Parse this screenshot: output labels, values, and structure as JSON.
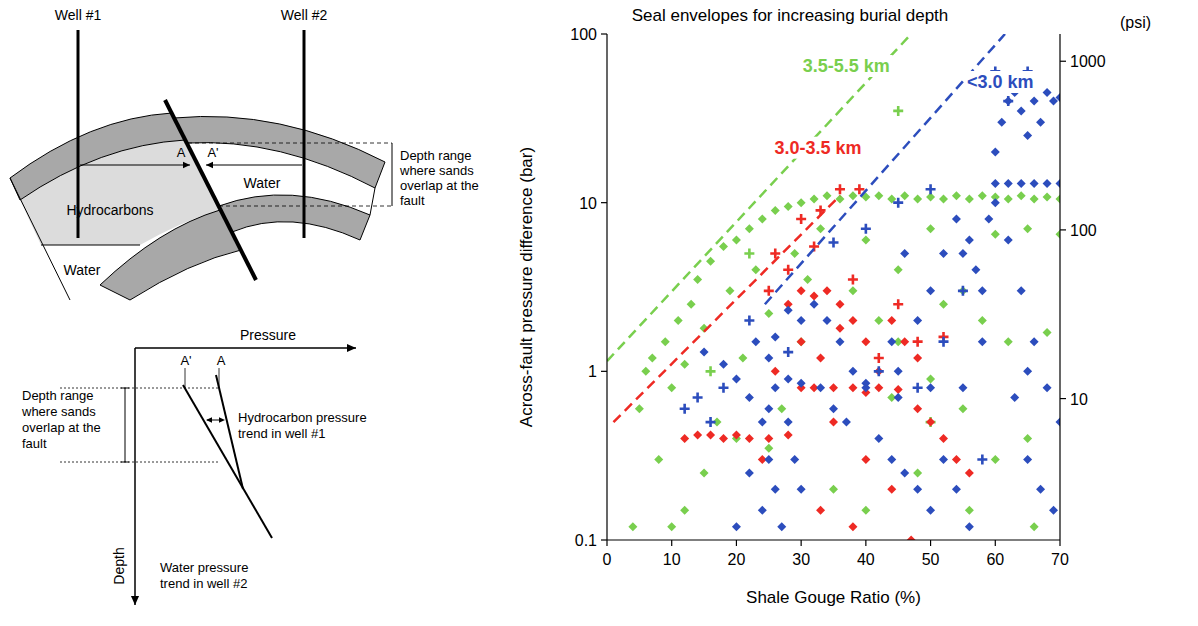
{
  "chart_data": {
    "type": "scatter",
    "title": "Seal envelopes for increasing burial depth",
    "x_label": "Shale Gouge Ratio (%)",
    "y_label": "Across-fault pressure difference (bar)",
    "y2_label": "(psi)",
    "log": "y",
    "xlim": [
      0,
      70
    ],
    "xticks": [
      0,
      10,
      20,
      30,
      40,
      50,
      60,
      70
    ],
    "ylim": [
      0.1,
      100
    ],
    "yticks": [
      0.1,
      1,
      10,
      100
    ],
    "y2lim": [
      1.45038,
      1450.38
    ],
    "y2ticks": [
      10,
      100,
      1000
    ],
    "series": [
      {
        "type": "scatter",
        "marker": "diamond",
        "color": "#79cf4e",
        "x": [
          4,
          5,
          6,
          7,
          8,
          9,
          10,
          11,
          12,
          12,
          13,
          14,
          15,
          16,
          17,
          18,
          19,
          20,
          21,
          22,
          23,
          24,
          25,
          26,
          27,
          28,
          29,
          30,
          31,
          32,
          33,
          34,
          36,
          38,
          40,
          42,
          44,
          46,
          48,
          50,
          52,
          54,
          56,
          58,
          60,
          62,
          64,
          66,
          68,
          70,
          40,
          45,
          50,
          55,
          60,
          65,
          70,
          45,
          50,
          55,
          60,
          65,
          35,
          40,
          48,
          62,
          68,
          58,
          52,
          42,
          38,
          44,
          30,
          25,
          20,
          15,
          10,
          66,
          56
        ],
        "values": [
          0.12,
          0.6,
          1,
          1.2,
          0.3,
          1.5,
          0.8,
          2,
          0.15,
          1.1,
          2.5,
          3.5,
          1.8,
          4.5,
          0.5,
          5.5,
          3,
          6,
          1.2,
          7,
          4,
          8,
          2.2,
          9,
          0.6,
          9.5,
          5,
          10,
          3.5,
          10.5,
          7,
          11,
          10.5,
          11,
          10.8,
          11,
          10.5,
          11,
          10.5,
          10.8,
          10.5,
          11,
          10.5,
          11,
          10.8,
          10.5,
          11,
          10.5,
          10.8,
          10.5,
          6,
          4,
          7,
          3,
          6.5,
          7,
          6.5,
          1.5,
          0.9,
          0.6,
          0.3,
          0.4,
          0.2,
          0.15,
          0.25,
          1.5,
          1.7,
          2,
          2.5,
          2,
          3,
          0.7,
          1.5,
          0.35,
          0.4,
          0.25,
          0.12,
          0.12,
          0.15
        ]
      },
      {
        "type": "scatter",
        "marker": "plus",
        "color": "#79cf4e",
        "x": [
          45,
          16,
          22,
          50
        ],
        "values": [
          35,
          1,
          5,
          0.5
        ]
      },
      {
        "type": "scatter",
        "marker": "diamond",
        "color": "#ee2a24",
        "x": [
          12,
          14,
          16,
          18,
          20,
          22,
          25,
          28,
          30,
          32,
          35,
          38,
          40,
          42,
          45,
          28,
          30,
          32,
          34,
          36,
          38,
          40,
          30,
          33,
          36,
          42,
          44,
          46,
          48,
          50,
          52,
          54,
          56,
          24,
          26,
          35,
          40,
          44,
          33,
          48,
          38,
          47
        ],
        "values": [
          0.4,
          0.42,
          0.42,
          0.4,
          0.42,
          0.4,
          0.4,
          0.42,
          0.8,
          0.8,
          0.8,
          0.8,
          0.75,
          0.8,
          0.78,
          2.5,
          3,
          2.8,
          3,
          2.5,
          2,
          1.5,
          1.5,
          1.2,
          1.8,
          1,
          2,
          1.5,
          0.6,
          0.5,
          0.4,
          0.3,
          0.25,
          0.3,
          1,
          0.5,
          0.3,
          0.2,
          0.15,
          1.2,
          0.12,
          0.1
        ]
      },
      {
        "type": "scatter",
        "marker": "plus",
        "color": "#ee2a24",
        "x": [
          30,
          33,
          36,
          39,
          26,
          32,
          28,
          25,
          38,
          45,
          42,
          48,
          52
        ],
        "values": [
          8,
          9,
          12,
          12,
          5,
          5.5,
          4,
          3,
          3.5,
          2.5,
          1.2,
          1.5,
          1.6
        ]
      },
      {
        "type": "scatter",
        "marker": "diamond",
        "color": "#2c4dbd",
        "x": [
          15,
          18,
          20,
          22,
          24,
          25,
          26,
          27,
          23,
          25,
          26,
          28,
          29,
          30,
          22,
          24,
          28,
          25,
          32,
          34,
          36,
          38,
          40,
          33,
          35,
          37,
          45,
          50,
          55,
          40,
          30,
          45,
          42,
          44,
          46,
          48,
          50,
          52,
          54,
          56,
          55,
          56,
          57,
          58,
          59,
          60,
          60,
          61,
          62,
          63,
          64,
          65,
          66,
          67,
          68,
          69,
          70,
          60,
          62,
          64,
          66,
          68,
          70,
          62,
          64,
          66,
          68,
          70,
          65,
          67,
          69,
          52,
          54,
          50,
          48,
          46,
          44,
          63,
          65,
          58,
          20,
          28,
          30,
          26
        ],
        "values": [
          1.3,
          1.1,
          0.9,
          0.7,
          0.5,
          0.3,
          0.2,
          0.12,
          1.5,
          1.2,
          0.8,
          0.5,
          0.3,
          0.2,
          0.25,
          0.15,
          0.9,
          0.6,
          2.5,
          2,
          1.5,
          1,
          0.8,
          0.8,
          0.6,
          0.5,
          1,
          0.8,
          0.8,
          0.85,
          0.85,
          0.7,
          0.4,
          0.3,
          0.25,
          0.2,
          0.15,
          0.3,
          0.2,
          0.12,
          5,
          6,
          4,
          3,
          8,
          10,
          20,
          30,
          40,
          45,
          35,
          25,
          40,
          30,
          45,
          40,
          42,
          13,
          13,
          13,
          13,
          13,
          13,
          6,
          3,
          1.5,
          0.8,
          0.5,
          0.3,
          0.2,
          0.15,
          5,
          8,
          3,
          2,
          5,
          1.5,
          0.7,
          1,
          1.5,
          0.12,
          2.3,
          2,
          1.6
        ]
      },
      {
        "type": "scatter",
        "marker": "plus",
        "color": "#2c4dbd",
        "x": [
          12,
          14,
          16,
          18,
          22,
          28,
          35,
          40,
          45,
          50,
          60,
          62,
          65,
          55,
          52,
          58,
          48,
          42
        ],
        "values": [
          0.6,
          0.7,
          0.5,
          0.8,
          2,
          1.3,
          5.8,
          7,
          10,
          12,
          60,
          40,
          60,
          3,
          1.5,
          0.3,
          0.8,
          1
        ]
      },
      {
        "name": "3.5-5.5 km",
        "type": "line",
        "line_style": "dashed",
        "color": "#79cf4e",
        "x": [
          0,
          47
        ],
        "values": [
          1.15,
          100
        ]
      },
      {
        "name": "3.0-3.5 km",
        "type": "line",
        "line_style": "dashed",
        "color": "#ee2a24",
        "x": [
          1,
          36
        ],
        "values": [
          0.5,
          11
        ]
      },
      {
        "name": "<3.0 km",
        "type": "line",
        "line_style": "dashed",
        "color": "#2c4dbd",
        "x": [
          24.4,
          61.5
        ],
        "values": [
          2.5,
          100
        ]
      }
    ]
  },
  "diagram": {
    "top": {
      "well_1": "Well #1",
      "well_2": "Well #2",
      "point_a": "A",
      "point_a_prime": "A'",
      "hydrocarbons": "Hydrocarbons",
      "water_left": "Water",
      "water_right": "Water",
      "overlap_label": "Depth range where sands overlap at the fault"
    },
    "bottom": {
      "x_axis": "Pressure",
      "y_axis": "Depth",
      "point_a_prime": "A'",
      "point_a": "A",
      "overlap_label": "Depth range where sands overlap at the fault",
      "hydrocarbon_trend": "Hydrocarbon pressure trend in well #1",
      "water_trend": "Water pressure trend in well #2"
    }
  }
}
